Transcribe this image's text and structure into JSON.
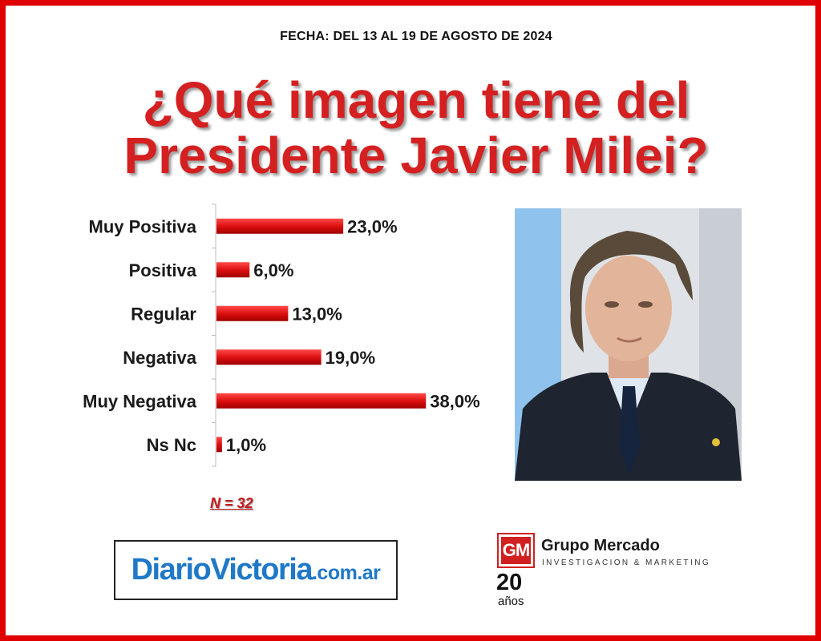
{
  "header": {
    "date": "FECHA: DEL 13 AL 19 DE AGOSTO DE  2024",
    "title_line1": "¿Qué imagen tiene del",
    "title_line2": "Presidente Javier Milei?"
  },
  "colors": {
    "border": "#e00000",
    "title": "#d42020",
    "bar": "#dd1010",
    "logo_blue": "#1f78c8",
    "logo_red": "#d12020"
  },
  "chart_data": {
    "type": "bar",
    "orientation": "horizontal",
    "categories": [
      "Muy Positiva",
      "Positiva",
      "Regular",
      "Negativa",
      "Muy Negativa",
      "Ns Nc"
    ],
    "values": [
      23.0,
      6.0,
      13.0,
      19.0,
      38.0,
      1.0
    ],
    "value_labels": [
      "23,0%",
      "6,0%",
      "13,0%",
      "19,0%",
      "38,0%",
      "1,0%"
    ],
    "xlim": [
      0,
      40
    ],
    "grid": false,
    "legend": "none",
    "bar_color": "#dd1010"
  },
  "sample": {
    "label": "N = 32"
  },
  "photo": {
    "alt": "Presidente Javier Milei"
  },
  "logos": {
    "diario_main": "DiarioVictoria",
    "diario_ext": ".com.ar",
    "gm_badge": "GM",
    "gm_name": "Grupo Mercado",
    "gm_sub": "INVESTIGACION & MARKETING",
    "gm_years": "20",
    "gm_years_word": "años"
  }
}
